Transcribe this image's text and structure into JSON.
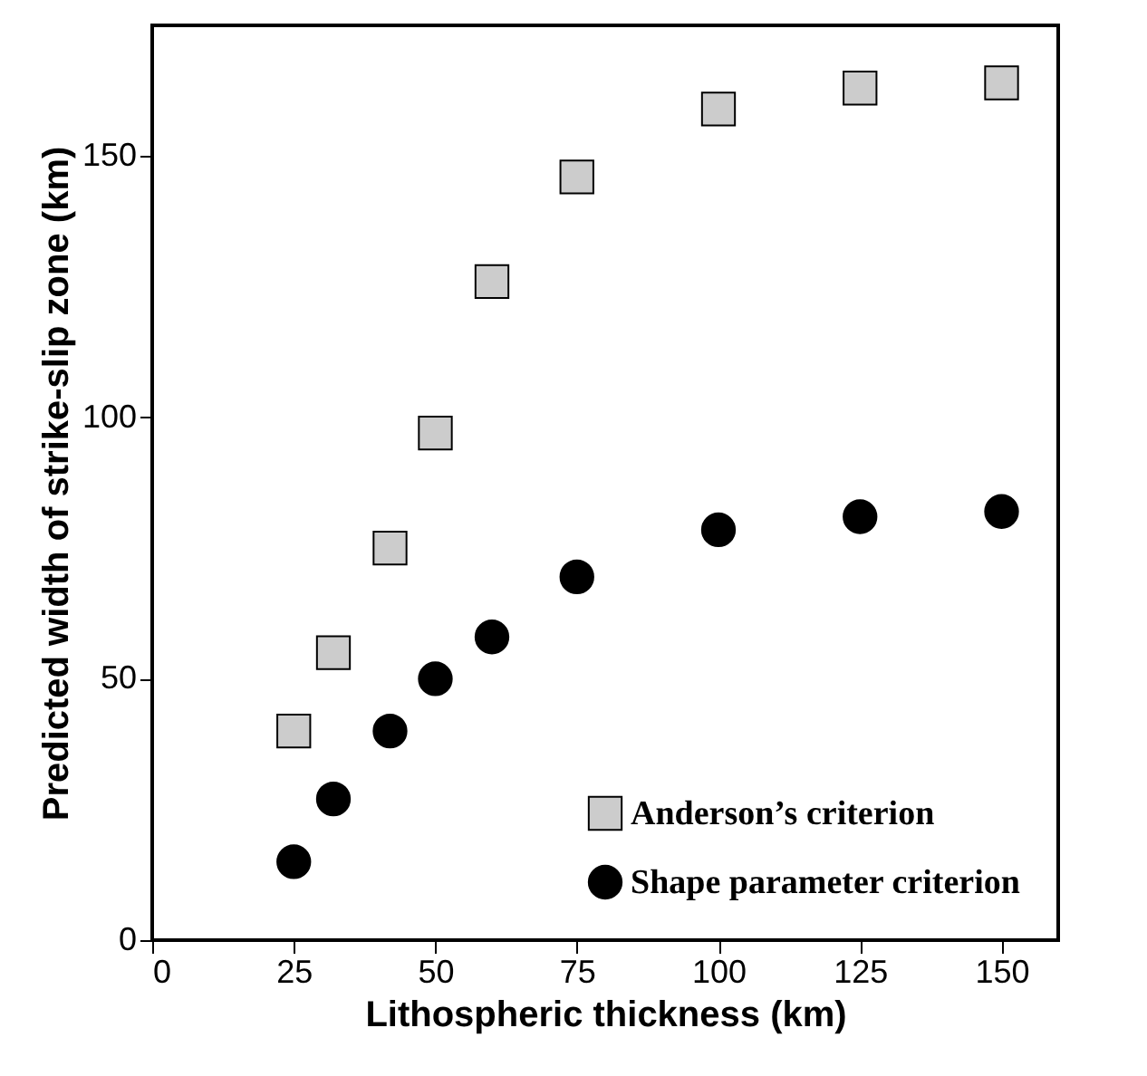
{
  "chart_data": {
    "type": "scatter",
    "xlabel": "Lithospheric thickness (km)",
    "ylabel": "Predicted width of strike-slip zone (km)",
    "xlim": [
      0,
      160
    ],
    "xticks": [
      0,
      25,
      50,
      75,
      100,
      125,
      150
    ],
    "ylim": [
      0,
      175
    ],
    "yticks": [
      0,
      50,
      100,
      150
    ],
    "grid": false,
    "legend": "bottom right",
    "series": [
      {
        "name": "Anderson’s criterion",
        "color": "#cccccc",
        "marker": "square",
        "x": [
          25,
          32,
          42,
          50,
          60,
          75,
          100,
          125,
          150
        ],
        "values": [
          40,
          55,
          75,
          97,
          126,
          146,
          159,
          163,
          164
        ]
      },
      {
        "name": "Shape parameter criterion",
        "color": "#000000",
        "marker": "circle",
        "x": [
          25,
          32,
          42,
          50,
          60,
          75,
          100,
          125,
          150
        ],
        "values": [
          15,
          27,
          40,
          50,
          58,
          69.5,
          78.5,
          81,
          82
        ]
      }
    ]
  }
}
